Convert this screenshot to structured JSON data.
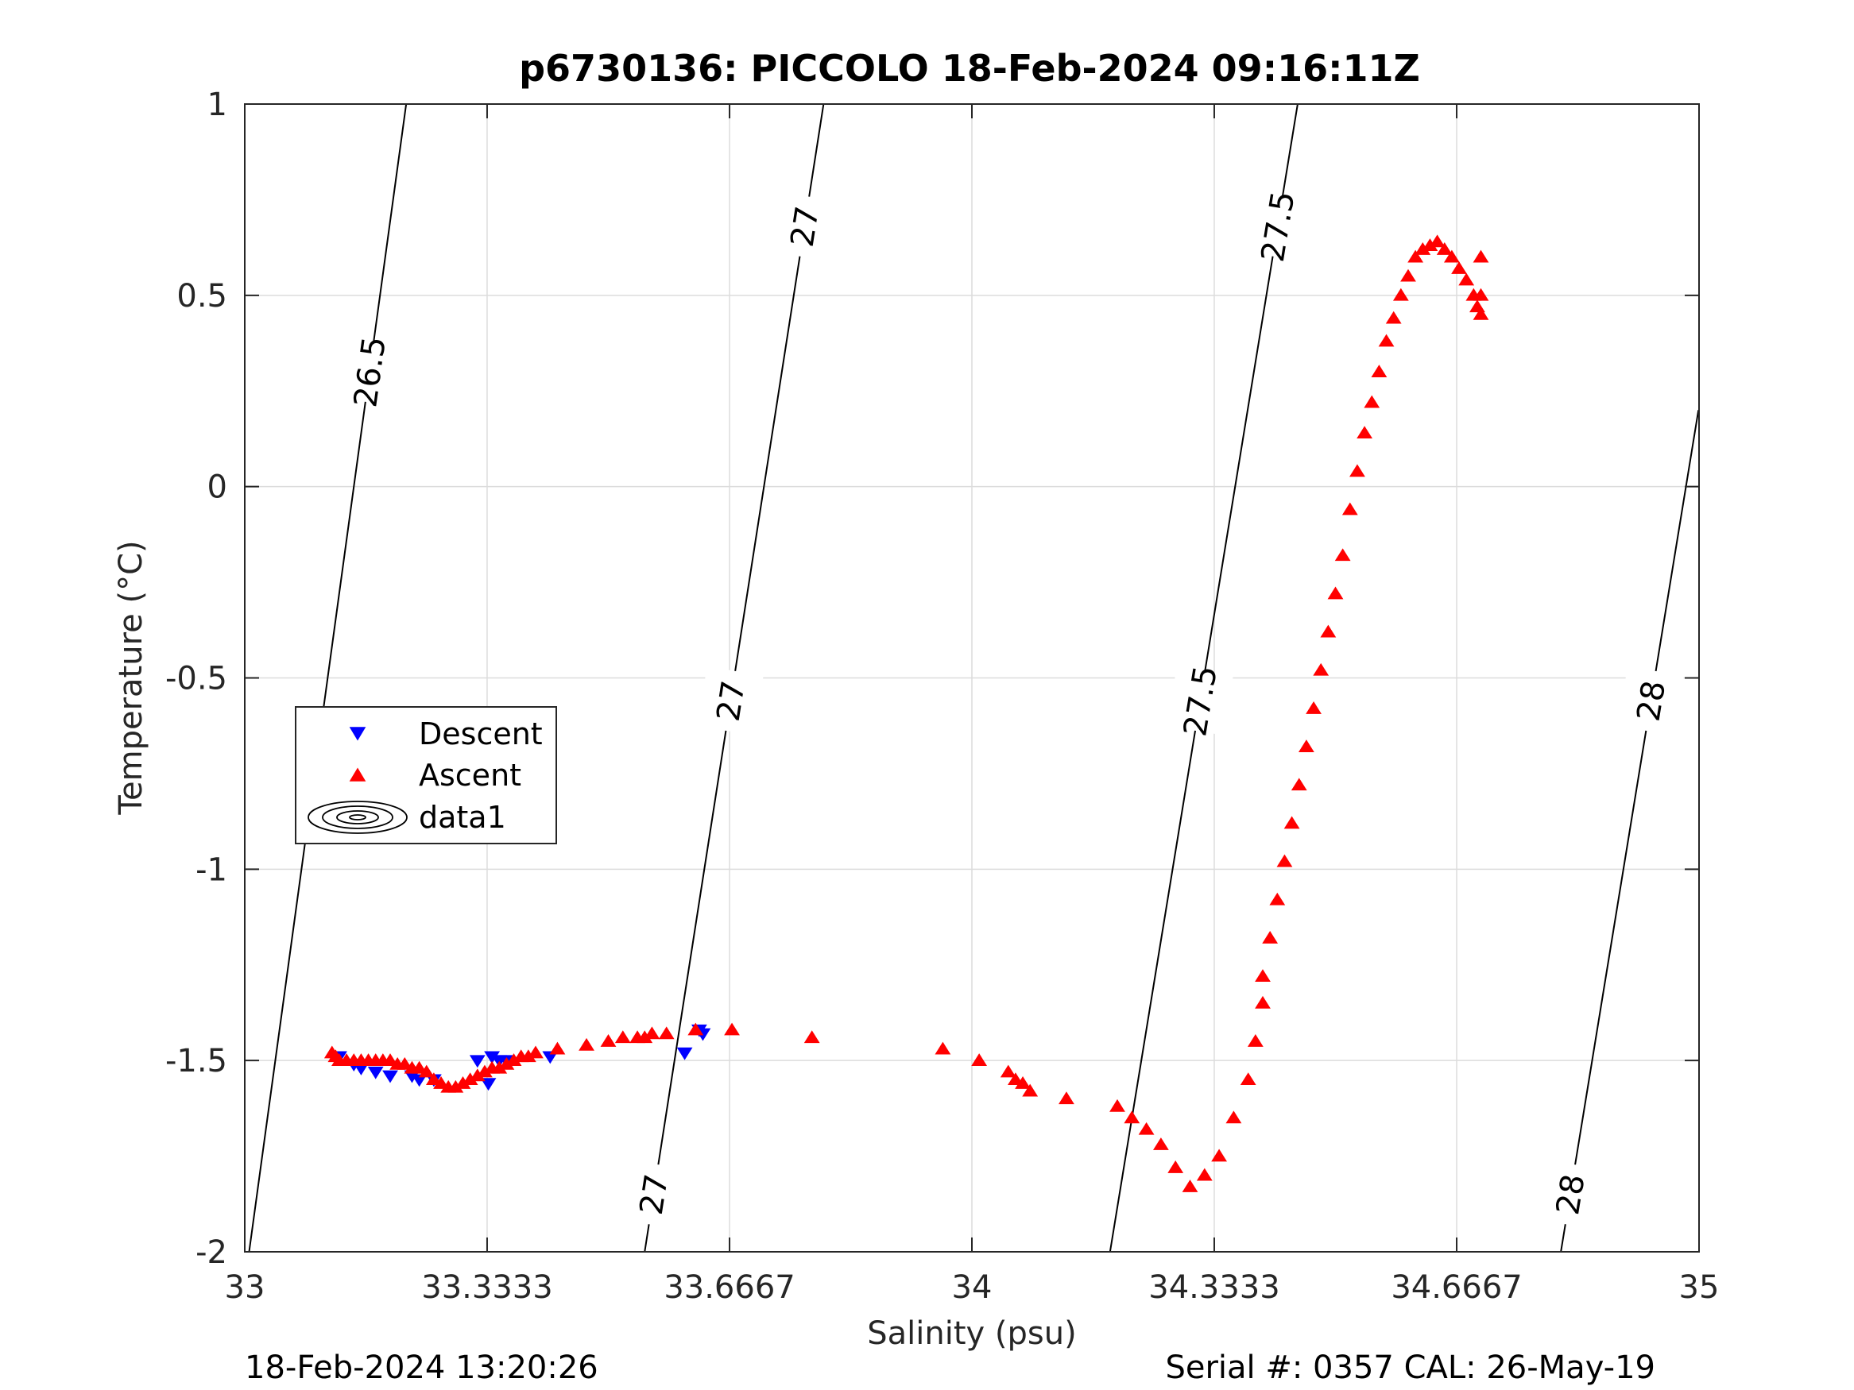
{
  "chart_data": {
    "type": "scatter",
    "title": "p6730136: PICCOLO 18-Feb-2024 09:16:11Z",
    "xlabel": "Salinity (psu)",
    "ylabel": "Temperature (°C)",
    "xlim": [
      33,
      35
    ],
    "ylim": [
      -2,
      1
    ],
    "x_ticks": [
      "33",
      "33.3333",
      "33.6667",
      "34",
      "34.3333",
      "34.6667",
      "35"
    ],
    "y_ticks": [
      "-2",
      "-1.5",
      "-1",
      "-0.5",
      "0",
      "0.5",
      "1"
    ],
    "grid": true,
    "legend_position": "left",
    "series": [
      {
        "name": "Descent",
        "marker": "triangle-down",
        "color": "#0000ff",
        "x": [
          33.13,
          33.15,
          33.16,
          33.18,
          33.2,
          33.23,
          33.24,
          33.26,
          33.32,
          33.335,
          33.34,
          33.35,
          33.36,
          33.42,
          33.605,
          33.625,
          33.63
        ],
        "y": [
          -1.49,
          -1.51,
          -1.52,
          -1.53,
          -1.54,
          -1.54,
          -1.55,
          -1.55,
          -1.5,
          -1.56,
          -1.49,
          -1.5,
          -1.5,
          -1.49,
          -1.48,
          -1.42,
          -1.43
        ]
      },
      {
        "name": "Ascent",
        "marker": "triangle-up",
        "color": "#ff0000",
        "x": [
          33.12,
          33.125,
          33.13,
          33.14,
          33.15,
          33.16,
          33.17,
          33.18,
          33.19,
          33.2,
          33.21,
          33.22,
          33.23,
          33.24,
          33.25,
          33.26,
          33.27,
          33.28,
          33.29,
          33.3,
          33.31,
          33.32,
          33.33,
          33.34,
          33.35,
          33.36,
          33.37,
          33.38,
          33.39,
          33.4,
          33.43,
          33.47,
          33.5,
          33.52,
          33.54,
          33.55,
          33.56,
          33.58,
          33.62,
          33.67,
          33.78,
          33.96,
          34.01,
          34.05,
          34.06,
          34.07,
          34.08,
          34.13,
          34.2,
          34.22,
          34.24,
          34.26,
          34.28,
          34.3,
          34.32,
          34.34,
          34.36,
          34.38,
          34.39,
          34.4,
          34.4,
          34.41,
          34.42,
          34.43,
          34.44,
          34.45,
          34.46,
          34.47,
          34.48,
          34.49,
          34.5,
          34.51,
          34.52,
          34.53,
          34.54,
          34.55,
          34.56,
          34.57,
          34.58,
          34.59,
          34.6,
          34.61,
          34.62,
          34.63,
          34.64,
          34.65,
          34.66,
          34.67,
          34.68,
          34.69,
          34.695,
          34.7,
          34.7,
          34.7
        ],
        "y": [
          -1.48,
          -1.49,
          -1.5,
          -1.5,
          -1.5,
          -1.5,
          -1.5,
          -1.5,
          -1.5,
          -1.5,
          -1.51,
          -1.51,
          -1.52,
          -1.52,
          -1.53,
          -1.55,
          -1.56,
          -1.57,
          -1.57,
          -1.56,
          -1.55,
          -1.54,
          -1.53,
          -1.52,
          -1.52,
          -1.51,
          -1.5,
          -1.49,
          -1.49,
          -1.48,
          -1.47,
          -1.46,
          -1.45,
          -1.44,
          -1.44,
          -1.44,
          -1.43,
          -1.43,
          -1.42,
          -1.42,
          -1.44,
          -1.47,
          -1.5,
          -1.53,
          -1.55,
          -1.56,
          -1.58,
          -1.6,
          -1.62,
          -1.65,
          -1.68,
          -1.72,
          -1.78,
          -1.83,
          -1.8,
          -1.75,
          -1.65,
          -1.55,
          -1.45,
          -1.35,
          -1.28,
          -1.18,
          -1.08,
          -0.98,
          -0.88,
          -0.78,
          -0.68,
          -0.58,
          -0.48,
          -0.38,
          -0.28,
          -0.18,
          -0.06,
          0.04,
          0.14,
          0.22,
          0.3,
          0.38,
          0.44,
          0.5,
          0.55,
          0.6,
          0.62,
          0.63,
          0.64,
          0.62,
          0.6,
          0.57,
          0.54,
          0.5,
          0.47,
          0.45,
          0.5,
          0.6
        ]
      }
    ],
    "contours": [
      {
        "level": "26.5",
        "labels": [
          "26.5"
        ]
      },
      {
        "level": "27",
        "labels": [
          "27",
          "27",
          "27"
        ]
      },
      {
        "level": "27.5",
        "labels": [
          "27.5",
          "27.5"
        ]
      },
      {
        "level": "28",
        "labels": [
          "28",
          "28"
        ]
      }
    ],
    "legend_entries": [
      "Descent",
      "Ascent",
      "data1"
    ]
  },
  "footer": {
    "timestamp": "18-Feb-2024 13:20:26",
    "serial": "Serial #: 0357  CAL: 26-May-19"
  }
}
